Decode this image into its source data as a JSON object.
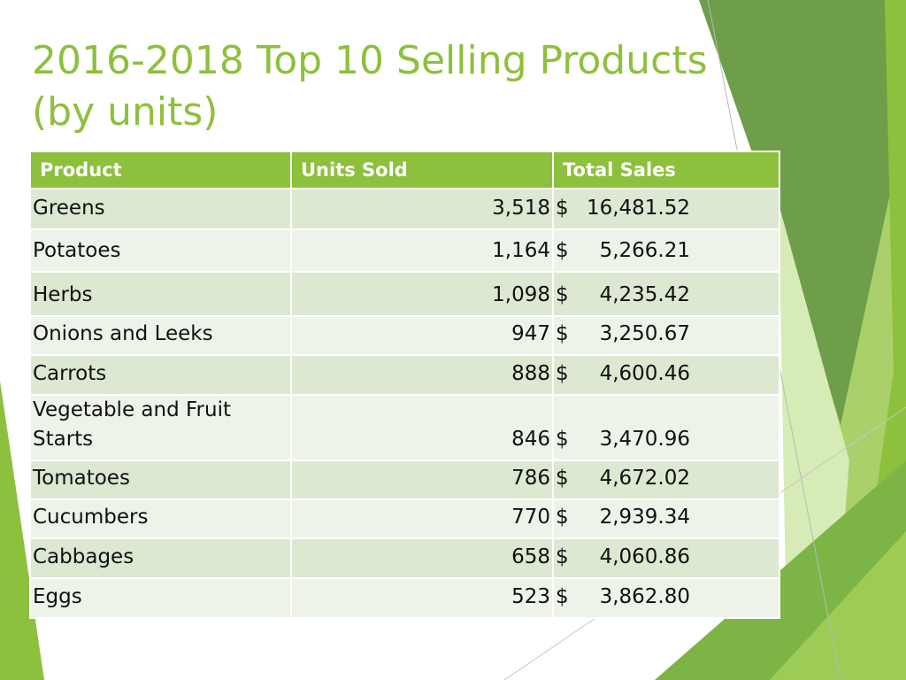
{
  "slide": {
    "title_lines": [
      "2016-2018 Top 10 Selling Products",
      "(by units)"
    ]
  },
  "table": {
    "headers": [
      "Product",
      "Units Sold",
      "Total Sales"
    ],
    "currency_symbol": "$",
    "rows": [
      {
        "product": "Greens",
        "units": "3,518",
        "sales": "16,481.52"
      },
      {
        "product": "Potatoes",
        "units": "1,164",
        "sales": "5,266.21"
      },
      {
        "product": "Herbs",
        "units": "1,098",
        "sales": "4,235.42"
      },
      {
        "product": "Onions and Leeks",
        "units": "947",
        "sales": "3,250.67"
      },
      {
        "product": "Carrots",
        "units": "888",
        "sales": "4,600.46"
      },
      {
        "product": "Vegetable and Fruit Starts",
        "units": "846",
        "sales": "3,470.96"
      },
      {
        "product": "Tomatoes",
        "units": "786",
        "sales": "4,672.02"
      },
      {
        "product": "Cucumbers",
        "units": "770",
        "sales": "2,939.34"
      },
      {
        "product": "Cabbages",
        "units": "658",
        "sales": "4,060.86"
      },
      {
        "product": "Eggs",
        "units": "523",
        "sales": "3,862.80"
      }
    ]
  },
  "theme": {
    "accent": "#8dc03c",
    "row_dark": "#dce8d2",
    "row_light": "#eef3ea",
    "shape_dark": "#6e9e49",
    "shape_mid": "#8dc03c",
    "shape_light": "#c8e2a0"
  }
}
